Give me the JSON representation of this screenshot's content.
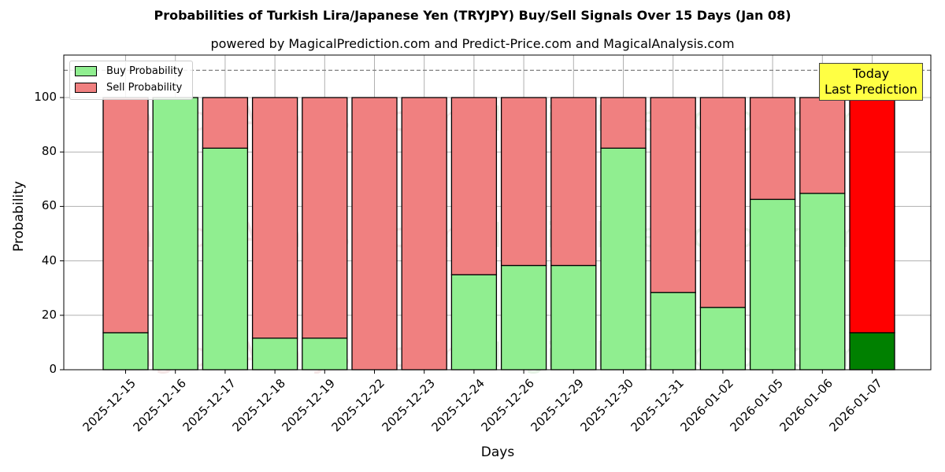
{
  "chart_data": {
    "type": "bar",
    "stacked": true,
    "title": "Probabilities of Turkish Lira/Japanese Yen (TRYJPY) Buy/Sell Signals Over 15 Days (Jan 08)",
    "subtitle": "powered by MagicalPrediction.com and Predict-Price.com and MagicalAnalysis.com",
    "xlabel": "Days",
    "ylabel": "Probability",
    "ylim": [
      0,
      115
    ],
    "yticks": [
      0,
      20,
      40,
      60,
      80,
      100
    ],
    "grid": true,
    "legend_position": "upper left",
    "reference_line": 110,
    "categories": [
      "2025-12-15",
      "2025-12-16",
      "2025-12-17",
      "2025-12-18",
      "2025-12-19",
      "2025-12-22",
      "2025-12-23",
      "2025-12-24",
      "2025-12-26",
      "2025-12-29",
      "2025-12-30",
      "2025-12-31",
      "2026-01-02",
      "2026-01-05",
      "2026-01-06",
      "2026-01-07"
    ],
    "series": [
      {
        "name": "Buy Probability",
        "color": "#90ee90",
        "values": [
          13.6,
          100,
          81.4,
          11.6,
          11.6,
          0,
          0,
          34.9,
          38.3,
          38.3,
          81.4,
          28.4,
          22.9,
          62.6,
          64.8,
          13.6
        ]
      },
      {
        "name": "Sell Probability",
        "color": "#f08080",
        "values": [
          86.4,
          0,
          18.6,
          88.4,
          88.4,
          100,
          100,
          65.1,
          61.7,
          61.7,
          18.6,
          71.6,
          77.1,
          37.4,
          35.2,
          86.4
        ]
      }
    ],
    "highlight": {
      "index": 15,
      "buy_color": "#008000",
      "sell_color": "#ff0000"
    },
    "annotation": "Today\nLast Prediction"
  },
  "legend": {
    "buy": "Buy Probability",
    "sell": "Sell Probability"
  },
  "annotation": {
    "line1": "Today",
    "line2": "Last Prediction"
  },
  "watermarks": [
    "MagicalAnalysis.com",
    "MagicalPrediction.com"
  ]
}
